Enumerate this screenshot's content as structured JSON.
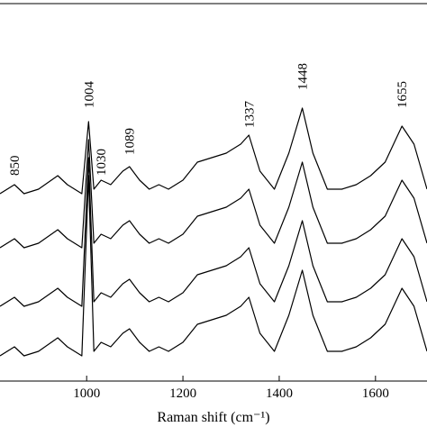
{
  "chart_data": {
    "type": "line",
    "x_label": "Raman shift (cm⁻¹)",
    "x": [
      820,
      850,
      870,
      900,
      940,
      960,
      990,
      1004,
      1015,
      1030,
      1050,
      1075,
      1089,
      1110,
      1130,
      1150,
      1170,
      1200,
      1230,
      1260,
      1290,
      1320,
      1337,
      1360,
      1390,
      1420,
      1448,
      1470,
      1500,
      1530,
      1560,
      1590,
      1620,
      1655,
      1680,
      1707
    ],
    "series": [
      {
        "color": "#000000",
        "values": [
          208,
          218,
          208,
          213,
          228,
          218,
          208,
          288,
          213,
          223,
          218,
          233,
          238,
          223,
          213,
          218,
          213,
          223,
          243,
          248,
          253,
          263,
          273,
          233,
          213,
          253,
          303,
          253,
          213,
          213,
          218,
          228,
          243,
          283,
          263,
          213
        ]
      },
      {
        "color": "#000000",
        "values": [
          148,
          158,
          148,
          153,
          168,
          158,
          148,
          268,
          153,
          163,
          158,
          173,
          178,
          163,
          153,
          158,
          153,
          163,
          183,
          188,
          193,
          203,
          213,
          173,
          153,
          193,
          243,
          193,
          153,
          153,
          158,
          168,
          183,
          223,
          203,
          153
        ]
      },
      {
        "color": "#000000",
        "values": [
          83,
          93,
          83,
          88,
          103,
          93,
          83,
          248,
          88,
          98,
          93,
          108,
          113,
          98,
          88,
          93,
          88,
          98,
          118,
          123,
          128,
          138,
          148,
          108,
          88,
          128,
          178,
          128,
          88,
          88,
          93,
          103,
          118,
          158,
          138,
          88
        ]
      },
      {
        "color": "#000000",
        "values": [
          28,
          38,
          28,
          33,
          48,
          38,
          28,
          228,
          33,
          43,
          38,
          53,
          58,
          43,
          33,
          38,
          33,
          43,
          63,
          68,
          73,
          83,
          93,
          53,
          33,
          73,
          123,
          73,
          33,
          33,
          38,
          48,
          63,
          103,
          83,
          33
        ]
      }
    ],
    "annotations": [
      {
        "text": "850",
        "x": 850,
        "y": 228
      },
      {
        "text": "1004",
        "x": 1004,
        "y": 303
      },
      {
        "text": "1030",
        "x": 1030,
        "y": 228
      },
      {
        "text": "1089",
        "x": 1089,
        "y": 251
      },
      {
        "text": "1337",
        "x": 1337,
        "y": 281
      },
      {
        "text": "1448",
        "x": 1448,
        "y": 323
      },
      {
        "text": "1655",
        "x": 1655,
        "y": 303
      }
    ],
    "xlim": [
      820,
      1707
    ],
    "ylim": [
      0,
      420
    ],
    "xticks": [
      1000,
      1200,
      1400,
      1600
    ]
  }
}
